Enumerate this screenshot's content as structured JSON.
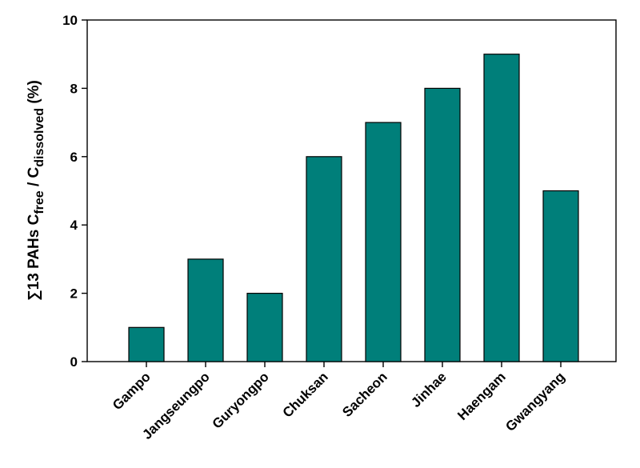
{
  "chart_data": {
    "type": "bar",
    "categories": [
      "Gampo",
      "Jangseungpo",
      "Guryongpo",
      "Chuksan",
      "Sacheon",
      "Jinhae",
      "Haengam",
      "Gwangyang"
    ],
    "values": [
      1,
      3,
      2,
      6,
      7,
      8,
      9,
      5
    ],
    "ylabel": {
      "prefix": "∑13 PAHs C",
      "sub1": "free",
      "mid": " / C",
      "sub2": "dissolved",
      "suffix": " (%)"
    },
    "xlabel": "",
    "ylim": [
      0,
      10
    ],
    "yticks": [
      "0",
      "2",
      "4",
      "6",
      "8",
      "10"
    ],
    "grid": false,
    "legend": "none",
    "bar_color": "#007f7a",
    "bar_edge_color": "#000000"
  }
}
